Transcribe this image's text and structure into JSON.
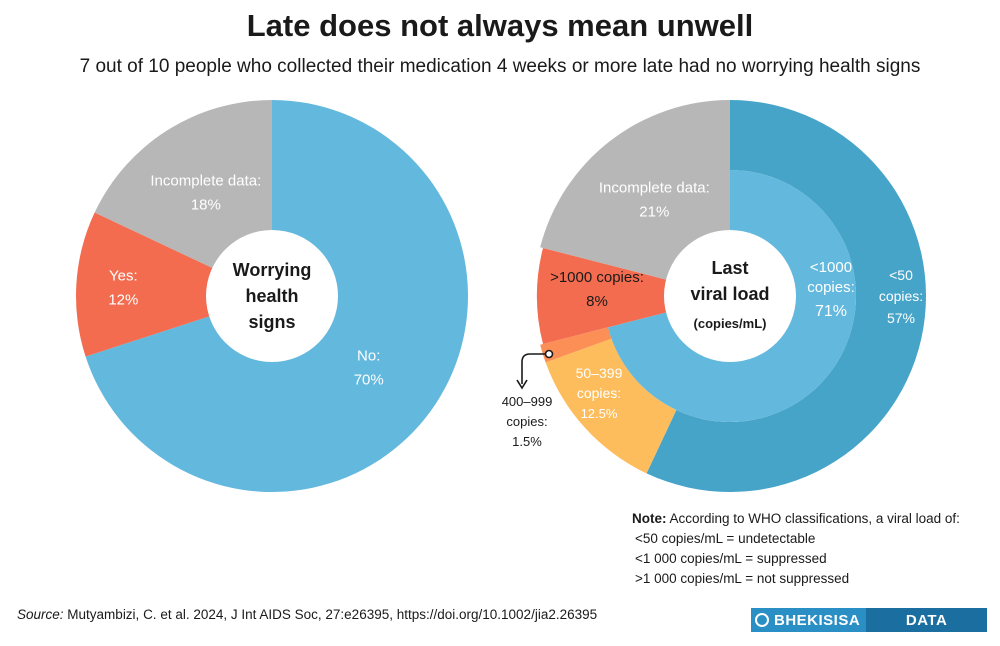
{
  "header": {
    "title": "Late does not always mean unwell",
    "subtitle": "7 out of 10 people who collected their medication 4 weeks or more late had no worrying health signs"
  },
  "chart_data": [
    {
      "type": "pie",
      "variant": "donut",
      "center_label": [
        "Worrying",
        "health",
        "signs"
      ],
      "slices": [
        {
          "name": "No:",
          "value": 70,
          "label": "70%",
          "color": "#63b8dd"
        },
        {
          "name": "Yes:",
          "value": 12,
          "label": "12%",
          "color": "#f36c4f"
        },
        {
          "name": "Incomplete data:",
          "value": 18,
          "label": "18%",
          "color": "#b7b7b7"
        }
      ]
    },
    {
      "type": "pie",
      "variant": "nested-donut",
      "center_label": [
        "Last",
        "viral load"
      ],
      "center_sublabel": "(copies/mL)",
      "inner": [
        {
          "name": "<1000",
          "name2": "copies:",
          "value": 71,
          "label": "71%",
          "color": "#63b8dd"
        },
        {
          "name": ">1000 copies:",
          "value": 8,
          "label": "8%",
          "color": "#f36c4f"
        },
        {
          "name": "Incomplete data:",
          "value": 21,
          "label": "21%",
          "color": "#b7b7b7"
        }
      ],
      "outer": [
        {
          "name": "<50",
          "name2": "copies:",
          "value": 57,
          "label": "57%",
          "color": "#46a4c9"
        },
        {
          "name": "50–399",
          "name2": "copies:",
          "value": 12.5,
          "label": "12.5%",
          "color": "#fdbd5d"
        },
        {
          "name": "400–999",
          "name2": "copies:",
          "value": 1.5,
          "label": "1.5%",
          "color": "#fb8f56"
        }
      ]
    }
  ],
  "note": {
    "label": "Note:",
    "text": "According to WHO classifications, a viral load of:",
    "lines": [
      "<50 copies/mL = undetectable",
      "<1 000 copies/mL = suppressed",
      ">1 000 copies/mL = not suppressed"
    ]
  },
  "source": {
    "label": "Source:",
    "text": "Mutyambizi, C. et al. 2024, J Int AIDS Soc, 27:e26395, https://doi.org/10.1002/jia2.26395"
  },
  "logo": {
    "part1": "BHEKISISA",
    "part2": "DATA",
    "colors": {
      "primary": "#2a8fc5",
      "secondary": "#1a6fa0"
    }
  }
}
